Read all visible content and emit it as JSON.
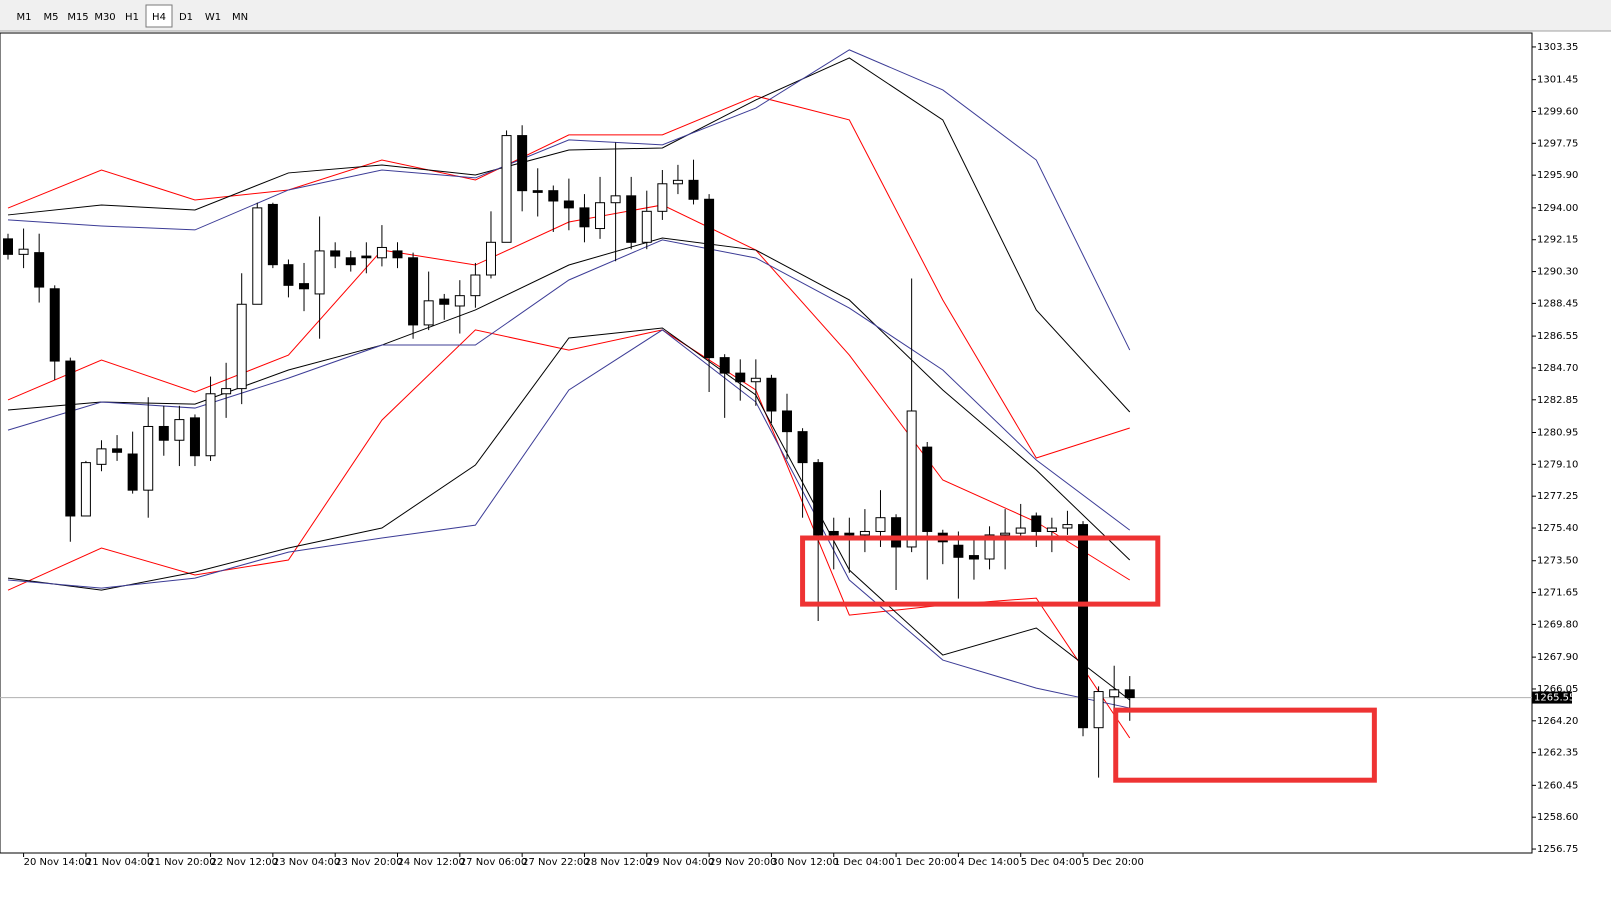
{
  "toolbar": {
    "timeframes": [
      "M1",
      "M5",
      "M15",
      "M30",
      "H1",
      "H4",
      "D1",
      "W1",
      "MN"
    ],
    "active": "H4"
  },
  "chart_data": {
    "type": "candlestick",
    "up_color": "#ffffff",
    "down_color": "#000000",
    "outline_color": "#000000",
    "ylim": [
      1256.52,
      1304.16
    ],
    "yticks": [
      {
        "value": 1303.35,
        "label": "1303.35"
      },
      {
        "value": 1301.45,
        "label": "1301.45"
      },
      {
        "value": 1299.6,
        "label": "1299.60"
      },
      {
        "value": 1297.75,
        "label": "1297.75"
      },
      {
        "value": 1295.9,
        "label": "1295.90"
      },
      {
        "value": 1294.0,
        "label": "1294.00"
      },
      {
        "value": 1292.15,
        "label": "1292.15"
      },
      {
        "value": 1290.3,
        "label": "1290.30"
      },
      {
        "value": 1288.45,
        "label": "1288.45"
      },
      {
        "value": 1286.55,
        "label": "1286.55"
      },
      {
        "value": 1284.7,
        "label": "1284.70"
      },
      {
        "value": 1282.85,
        "label": "1282.85"
      },
      {
        "value": 1280.95,
        "label": "1280.95"
      },
      {
        "value": 1279.1,
        "label": "1279.10"
      },
      {
        "value": 1277.25,
        "label": "1277.25"
      },
      {
        "value": 1275.4,
        "label": "1275.40"
      },
      {
        "value": 1273.5,
        "label": "1273.50"
      },
      {
        "value": 1271.65,
        "label": "1271.65"
      },
      {
        "value": 1269.8,
        "label": "1269.80"
      },
      {
        "value": 1267.9,
        "label": "1267.90"
      },
      {
        "value": 1266.05,
        "label": "1266.05"
      },
      {
        "value": 1264.2,
        "label": "1264.20"
      },
      {
        "value": 1262.35,
        "label": "1262.35"
      },
      {
        "value": 1260.45,
        "label": "1260.45"
      },
      {
        "value": 1258.6,
        "label": "1258.60"
      },
      {
        "value": 1256.75,
        "label": "1256.75"
      }
    ],
    "categories": [
      null,
      "20 Nov 14:00",
      null,
      null,
      null,
      "21 Nov 04:00",
      null,
      null,
      null,
      "21 Nov 20:00",
      null,
      null,
      null,
      "22 Nov 12:00",
      null,
      null,
      null,
      "23 Nov 04:00",
      null,
      null,
      null,
      "23 Nov 20:00",
      null,
      null,
      null,
      "24 Nov 12:00",
      null,
      null,
      null,
      "27 Nov 06:00",
      null,
      null,
      null,
      "27 Nov 22:00",
      null,
      null,
      null,
      "28 Nov 12:00",
      null,
      null,
      null,
      "29 Nov 04:00",
      null,
      null,
      null,
      "29 Nov 20:00",
      null,
      null,
      null,
      "30 Nov 12:00",
      null,
      null,
      null,
      "1 Dec 04:00",
      null,
      null,
      null,
      "1 Dec 20:00",
      null,
      null,
      null,
      "4 Dec 14:00",
      null,
      null,
      null,
      "5 Dec 04:00",
      null,
      null,
      null,
      "5 Dec 20:00",
      null,
      null,
      null
    ],
    "ohlc": [
      [
        1292.2,
        1292.5,
        1291.0,
        1291.3
      ],
      [
        1291.3,
        1292.8,
        1290.5,
        1291.6
      ],
      [
        1291.4,
        1292.5,
        1288.5,
        1289.4
      ],
      [
        1289.3,
        1289.5,
        1284.0,
        1285.1
      ],
      [
        1285.1,
        1285.3,
        1274.6,
        1276.1
      ],
      [
        1276.1,
        1279.3,
        1276.1,
        1279.2
      ],
      [
        1279.1,
        1280.5,
        1278.7,
        1280.0
      ],
      [
        1280.0,
        1280.8,
        1279.3,
        1279.8
      ],
      [
        1279.7,
        1281.0,
        1277.4,
        1277.6
      ],
      [
        1277.6,
        1283.0,
        1276.0,
        1281.3
      ],
      [
        1281.3,
        1282.5,
        1279.6,
        1280.5
      ],
      [
        1280.5,
        1282.5,
        1279.0,
        1281.7
      ],
      [
        1281.8,
        1282.0,
        1279.0,
        1279.6
      ],
      [
        1279.6,
        1284.2,
        1279.3,
        1283.2
      ],
      [
        1283.2,
        1285.0,
        1281.8,
        1283.5
      ],
      [
        1283.5,
        1290.2,
        1282.6,
        1288.4
      ],
      [
        1288.4,
        1294.3,
        1288.4,
        1294.0
      ],
      [
        1294.2,
        1294.3,
        1290.5,
        1290.7
      ],
      [
        1290.7,
        1291.0,
        1288.8,
        1289.5
      ],
      [
        1289.6,
        1290.8,
        1288.0,
        1289.3
      ],
      [
        1289.0,
        1293.5,
        1286.4,
        1291.5
      ],
      [
        1291.5,
        1292.0,
        1290.5,
        1291.2
      ],
      [
        1291.1,
        1291.5,
        1290.3,
        1290.7
      ],
      [
        1291.2,
        1292.0,
        1290.2,
        1291.1
      ],
      [
        1291.1,
        1293.0,
        1290.6,
        1291.7
      ],
      [
        1291.5,
        1292.0,
        1290.5,
        1291.1
      ],
      [
        1291.1,
        1291.4,
        1286.4,
        1287.2
      ],
      [
        1287.2,
        1290.3,
        1286.9,
        1288.6
      ],
      [
        1288.7,
        1289.0,
        1287.5,
        1288.4
      ],
      [
        1288.3,
        1289.8,
        1286.7,
        1288.9
      ],
      [
        1288.9,
        1290.8,
        1288.2,
        1290.1
      ],
      [
        1290.1,
        1293.8,
        1289.9,
        1292.0
      ],
      [
        1292.0,
        1298.5,
        1292.0,
        1298.2
      ],
      [
        1298.2,
        1298.8,
        1293.8,
        1295.0
      ],
      [
        1295.0,
        1296.3,
        1293.5,
        1294.9
      ],
      [
        1295.0,
        1295.3,
        1292.6,
        1294.4
      ],
      [
        1294.4,
        1295.7,
        1292.7,
        1294.0
      ],
      [
        1294.0,
        1294.8,
        1292.0,
        1292.9
      ],
      [
        1292.8,
        1295.8,
        1292.2,
        1294.3
      ],
      [
        1294.3,
        1297.8,
        1290.9,
        1294.7
      ],
      [
        1294.7,
        1295.8,
        1291.6,
        1292.0
      ],
      [
        1292.0,
        1295.0,
        1291.6,
        1293.8
      ],
      [
        1293.8,
        1296.2,
        1293.3,
        1295.4
      ],
      [
        1295.4,
        1296.5,
        1294.8,
        1295.6
      ],
      [
        1295.6,
        1296.8,
        1294.2,
        1294.5
      ],
      [
        1294.5,
        1294.8,
        1283.3,
        1285.3
      ],
      [
        1285.3,
        1285.5,
        1281.8,
        1284.4
      ],
      [
        1284.4,
        1285.2,
        1282.8,
        1283.9
      ],
      [
        1283.9,
        1285.2,
        1282.5,
        1284.1
      ],
      [
        1284.1,
        1284.3,
        1281.5,
        1282.2
      ],
      [
        1282.2,
        1283.2,
        1279.4,
        1281.0
      ],
      [
        1281.0,
        1281.2,
        1276.0,
        1279.2
      ],
      [
        1279.2,
        1279.4,
        1270.0,
        1275.0
      ],
      [
        1275.2,
        1276.0,
        1273.0,
        1275.0
      ],
      [
        1275.1,
        1276.0,
        1272.8,
        1275.0
      ],
      [
        1275.0,
        1276.5,
        1274.0,
        1275.2
      ],
      [
        1275.2,
        1277.6,
        1274.3,
        1276.0
      ],
      [
        1276.0,
        1276.2,
        1271.8,
        1274.3
      ],
      [
        1274.3,
        1289.9,
        1274.0,
        1282.2
      ],
      [
        1280.1,
        1280.4,
        1272.4,
        1275.2
      ],
      [
        1275.1,
        1275.3,
        1273.3,
        1274.6
      ],
      [
        1274.4,
        1275.2,
        1271.3,
        1273.7
      ],
      [
        1273.8,
        1274.8,
        1272.4,
        1273.6
      ],
      [
        1273.6,
        1275.5,
        1273.0,
        1275.0
      ],
      [
        1275.0,
        1276.5,
        1273.0,
        1275.1
      ],
      [
        1275.1,
        1276.8,
        1274.8,
        1275.4
      ],
      [
        1276.1,
        1276.3,
        1274.3,
        1275.2
      ],
      [
        1275.2,
        1276.0,
        1274.0,
        1275.4
      ],
      [
        1275.4,
        1276.4,
        1275.0,
        1275.6
      ],
      [
        1275.6,
        1275.8,
        1263.3,
        1263.8
      ],
      [
        1263.8,
        1266.2,
        1260.9,
        1265.9
      ],
      [
        1265.6,
        1267.4,
        1264.6,
        1266.0
      ],
      [
        1266.0,
        1266.8,
        1264.2,
        1265.55
      ]
    ],
    "indicators": {
      "x": [
        0,
        6,
        12,
        18,
        24,
        30,
        36,
        42,
        48,
        54,
        60,
        66,
        72
      ],
      "series": [
        {
          "color": "#ff0000",
          "values": [
            1293.99,
            1296.2,
            1294.46,
            1295.04,
            1296.78,
            1295.62,
            1298.24,
            1298.24,
            1300.5,
            1299.11,
            1288.65,
            1279.47,
            1281.21
          ]
        },
        {
          "color": "#ff0000",
          "values": [
            1282.84,
            1285.16,
            1283.3,
            1285.45,
            1291.55,
            1290.68,
            1293.18,
            1294.17,
            1291.55,
            1285.45,
            1278.19,
            1275.75,
            1272.38
          ]
        },
        {
          "color": "#ff0000",
          "values": [
            1271.79,
            1274.24,
            1272.67,
            1273.54,
            1281.67,
            1286.91,
            1285.74,
            1286.91,
            1283.42,
            1270.34,
            1270.92,
            1271.33,
            1263.2
          ]
        },
        {
          "color": "#000000",
          "values": [
            1293.59,
            1294.17,
            1293.88,
            1296.03,
            1296.49,
            1295.91,
            1297.36,
            1297.48,
            1300.27,
            1302.71,
            1299.11,
            1288.07,
            1282.14
          ]
        },
        {
          "color": "#000000",
          "values": [
            1282.26,
            1282.72,
            1282.6,
            1284.58,
            1286.03,
            1288.07,
            1290.68,
            1292.25,
            1291.55,
            1288.65,
            1283.42,
            1278.77,
            1273.54
          ]
        },
        {
          "color": "#000000",
          "values": [
            1272.49,
            1271.79,
            1272.84,
            1274.24,
            1275.4,
            1279.06,
            1286.44,
            1287.02,
            1283.13,
            1272.96,
            1268.02,
            1269.59,
            1265.41
          ]
        },
        {
          "color": "#3c3c96",
          "values": [
            1293.3,
            1292.95,
            1292.72,
            1295.04,
            1296.2,
            1295.74,
            1297.95,
            1297.66,
            1299.8,
            1303.18,
            1300.85,
            1296.78,
            1285.74
          ]
        },
        {
          "color": "#3c3c96",
          "values": [
            1281.09,
            1282.72,
            1282.37,
            1284.11,
            1286.03,
            1286.03,
            1289.81,
            1292.14,
            1291.09,
            1288.18,
            1284.58,
            1279.35,
            1275.28
          ]
        },
        {
          "color": "#3c3c96",
          "values": [
            1272.38,
            1271.91,
            1272.49,
            1274.0,
            1274.82,
            1275.57,
            1283.42,
            1286.91,
            1282.72,
            1272.38,
            1267.73,
            1266.1,
            1264.94
          ]
        }
      ]
    },
    "current_price": {
      "value": 1265.55,
      "label": "1265.55"
    },
    "zone_color": "#ee3333",
    "zones": [
      {
        "x": [
          51,
          73.8
        ],
        "y": [
          1270.98,
          1274.82
        ]
      },
      {
        "x": [
          71.1,
          87.7
        ],
        "y": [
          1260.75,
          1264.82
        ]
      }
    ]
  }
}
